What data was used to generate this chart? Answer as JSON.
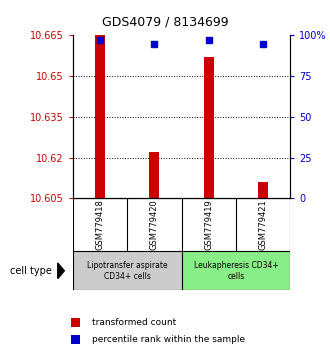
{
  "title": "GDS4079 / 8134699",
  "samples": [
    "GSM779418",
    "GSM779420",
    "GSM779419",
    "GSM779421"
  ],
  "transformed_counts": [
    10.665,
    10.622,
    10.657,
    10.611
  ],
  "percentile_ranks": [
    97,
    95,
    97,
    95
  ],
  "ylim_left": [
    10.605,
    10.665
  ],
  "ylim_right": [
    0,
    100
  ],
  "yticks_left": [
    10.605,
    10.62,
    10.635,
    10.65,
    10.665
  ],
  "yticks_right": [
    0,
    25,
    50,
    75,
    100
  ],
  "ytick_labels_left": [
    "10.605",
    "10.62",
    "10.635",
    "10.65",
    "10.665"
  ],
  "ytick_labels_right": [
    "0",
    "25",
    "50",
    "75",
    "100%"
  ],
  "bar_color": "#cc0000",
  "dot_color": "#0000cc",
  "bar_bottom": 10.605,
  "groups": [
    {
      "label": "Lipotransfer aspirate\nCD34+ cells",
      "samples": [
        0,
        1
      ],
      "color": "#cccccc"
    },
    {
      "label": "Leukapheresis CD34+\ncells",
      "samples": [
        2,
        3
      ],
      "color": "#88ee88"
    }
  ],
  "cell_type_label": "cell type",
  "legend_bar_label": "transformed count",
  "legend_dot_label": "percentile rank within the sample",
  "background_color": "#ffffff",
  "plot_bg_color": "#ffffff",
  "grid_color": "#000000",
  "left_tick_color": "#cc0000",
  "right_tick_color": "#0000cc"
}
